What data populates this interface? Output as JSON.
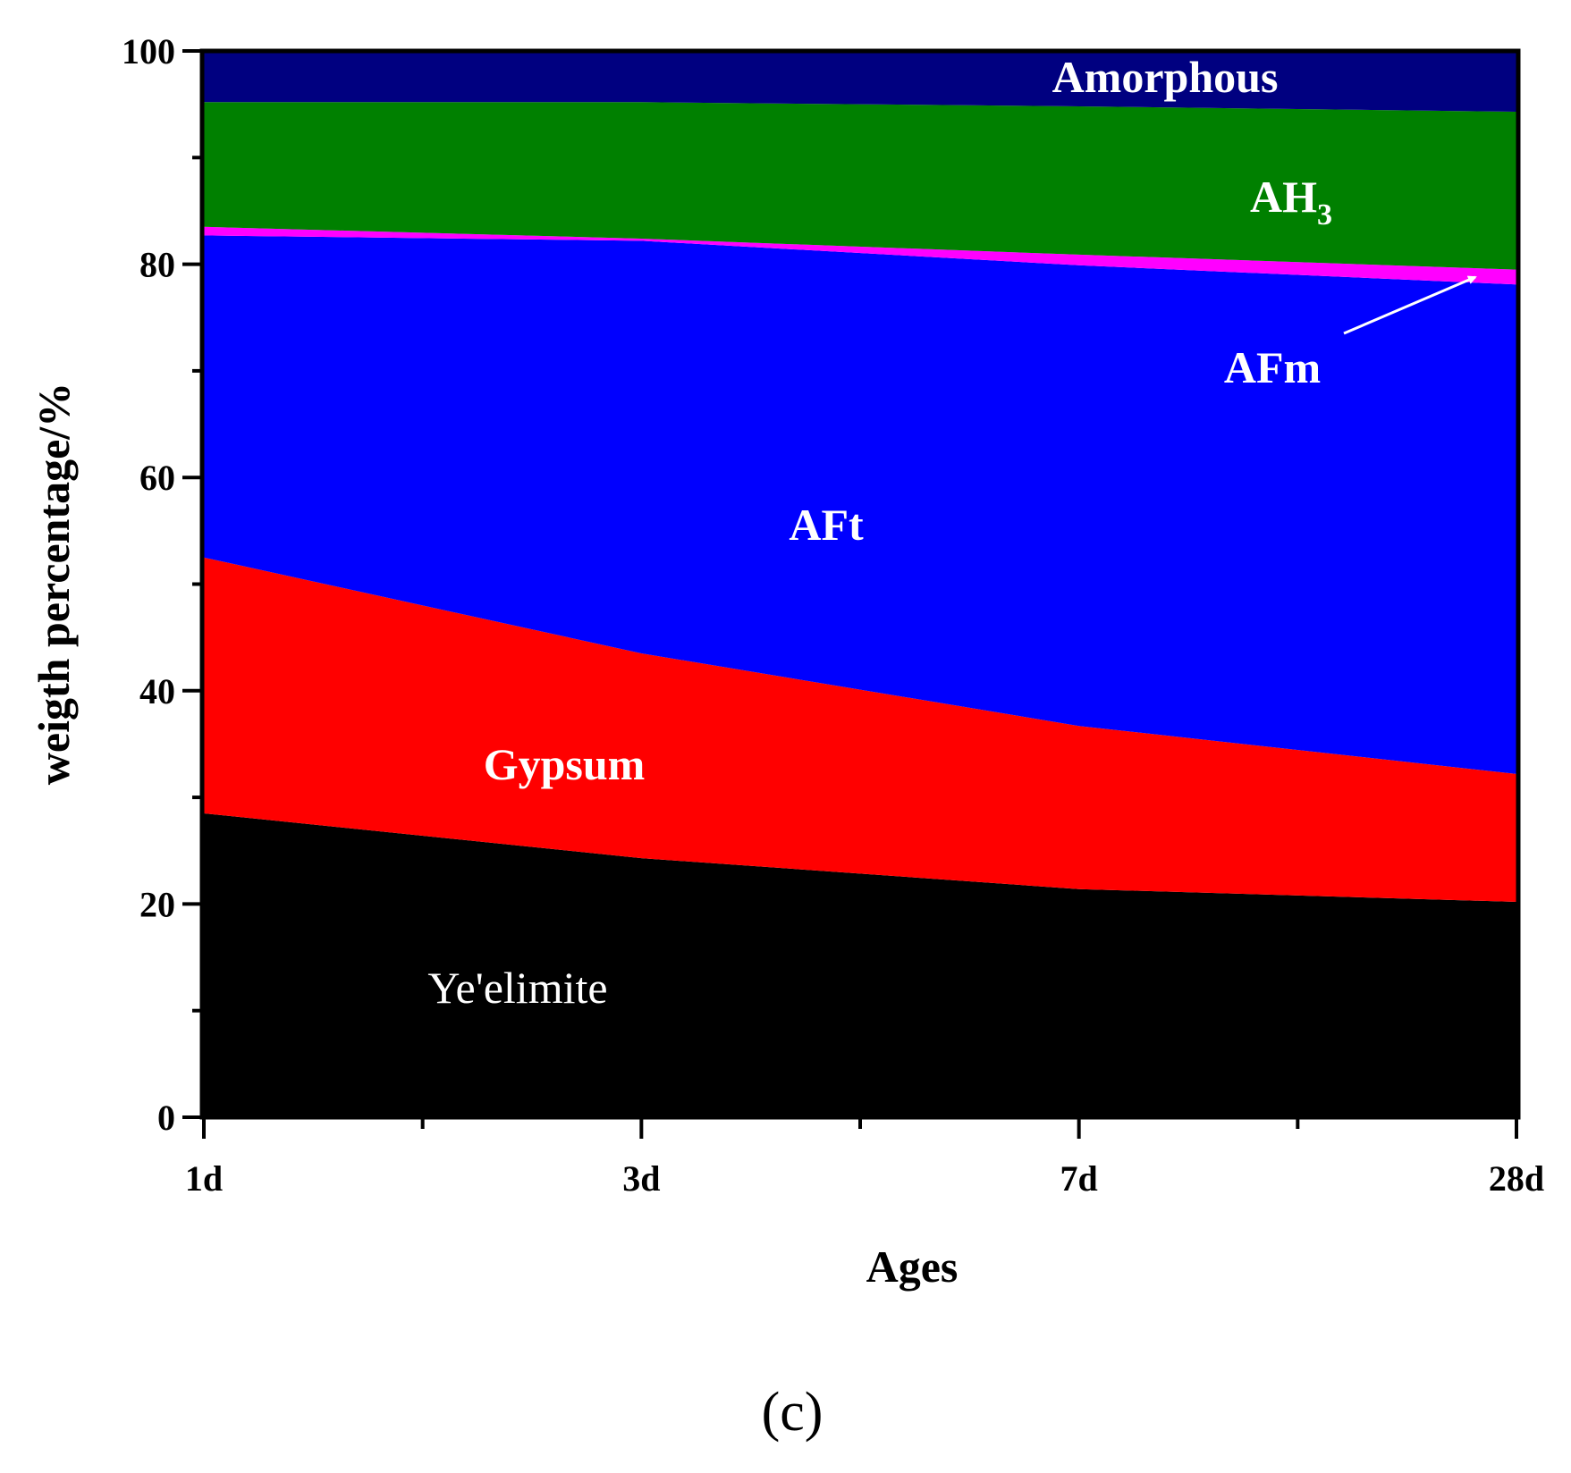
{
  "chart_data": {
    "type": "area",
    "stacked": true,
    "categories": [
      "1d",
      "3d",
      "7d",
      "28d"
    ],
    "xlabel": "Ages",
    "ylabel": "weigth percentage/%",
    "ylim": [
      0,
      100
    ],
    "yticks": [
      0,
      20,
      40,
      60,
      80,
      100
    ],
    "grid": false,
    "panel_label": "(c)",
    "series": [
      {
        "name": "Ye'elimite",
        "color": "#000000",
        "values": [
          28.5,
          24.3,
          21.4,
          20.2
        ]
      },
      {
        "name": "Gypsum",
        "color": "#ff0000",
        "values": [
          24.0,
          19.2,
          15.3,
          12.0
        ]
      },
      {
        "name": "AFt",
        "color": "#0000ff",
        "values": [
          30.2,
          38.7,
          43.2,
          45.9
        ]
      },
      {
        "name": "AFm",
        "color": "#ff00ff",
        "values": [
          0.8,
          0.2,
          1.0,
          1.4
        ]
      },
      {
        "name": "AH3",
        "color": "#008000",
        "values": [
          11.7,
          12.8,
          13.9,
          14.8
        ]
      },
      {
        "name": "Amorphous",
        "color": "#000080",
        "values": [
          4.8,
          4.8,
          5.2,
          5.7
        ]
      }
    ]
  }
}
